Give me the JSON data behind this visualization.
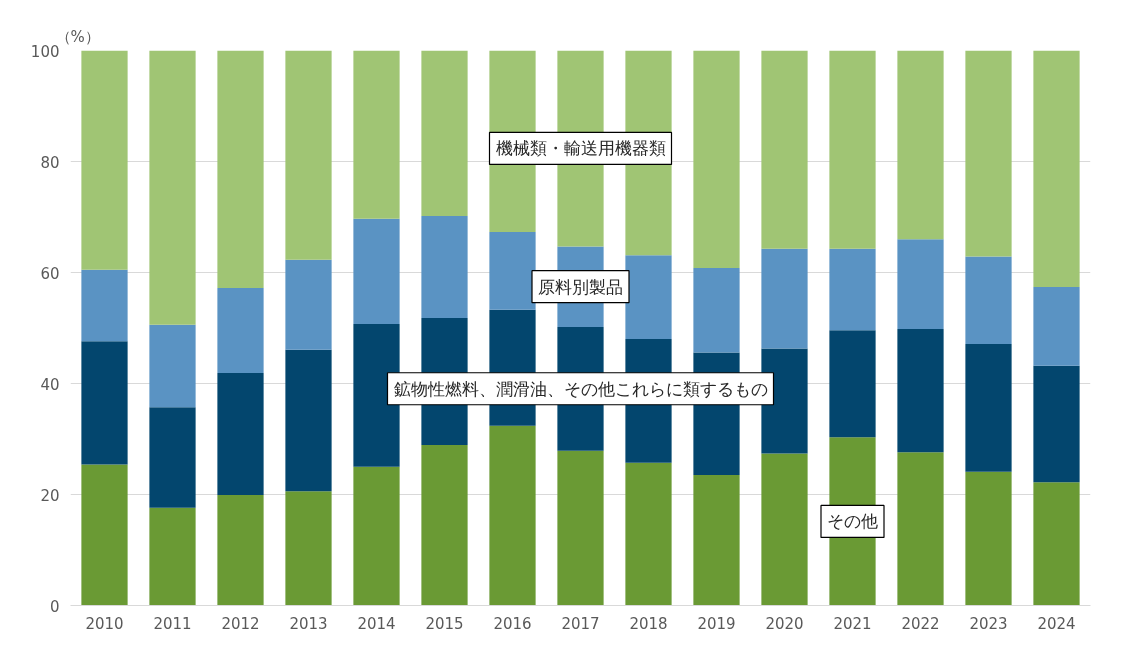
{
  "chart_data": {
    "type": "bar",
    "stacked": true,
    "ylabel": "（%）",
    "categories": [
      "2010",
      "2011",
      "2012",
      "2013",
      "2014",
      "2015",
      "2016",
      "2017",
      "2018",
      "2019",
      "2020",
      "2021",
      "2022",
      "2023",
      "2024"
    ],
    "series": [
      {
        "name": "その他",
        "color": "#6a9a34",
        "values": [
          25.4,
          17.6,
          19.9,
          20.6,
          25.0,
          28.9,
          32.4,
          27.9,
          25.7,
          23.5,
          27.4,
          30.3,
          27.6,
          24.1,
          22.2
        ]
      },
      {
        "name": "鉱物性燃料、潤滑油、その他これらに類するもの",
        "color": "#03466e",
        "values": [
          22.2,
          18.1,
          22.0,
          25.5,
          25.7,
          22.9,
          20.9,
          22.3,
          22.3,
          22.1,
          18.9,
          19.3,
          22.2,
          23.0,
          21.0
        ]
      },
      {
        "name": "原料別製品",
        "color": "#5a93c3",
        "values": [
          12.9,
          14.9,
          15.3,
          16.2,
          19.0,
          18.4,
          14.0,
          14.5,
          15.1,
          15.2,
          18.0,
          14.7,
          16.2,
          15.8,
          14.2
        ]
      },
      {
        "name": "機械類・輸送用機器類",
        "color": "#a0c574",
        "values": [
          39.5,
          49.4,
          42.8,
          37.7,
          30.3,
          29.8,
          32.7,
          35.3,
          36.9,
          39.2,
          35.7,
          35.7,
          34.0,
          37.1,
          42.6
        ]
      }
    ],
    "ylim": [
      0,
      100
    ],
    "yticks": [
      0,
      20,
      40,
      60,
      80,
      100
    ],
    "grid": "y"
  }
}
